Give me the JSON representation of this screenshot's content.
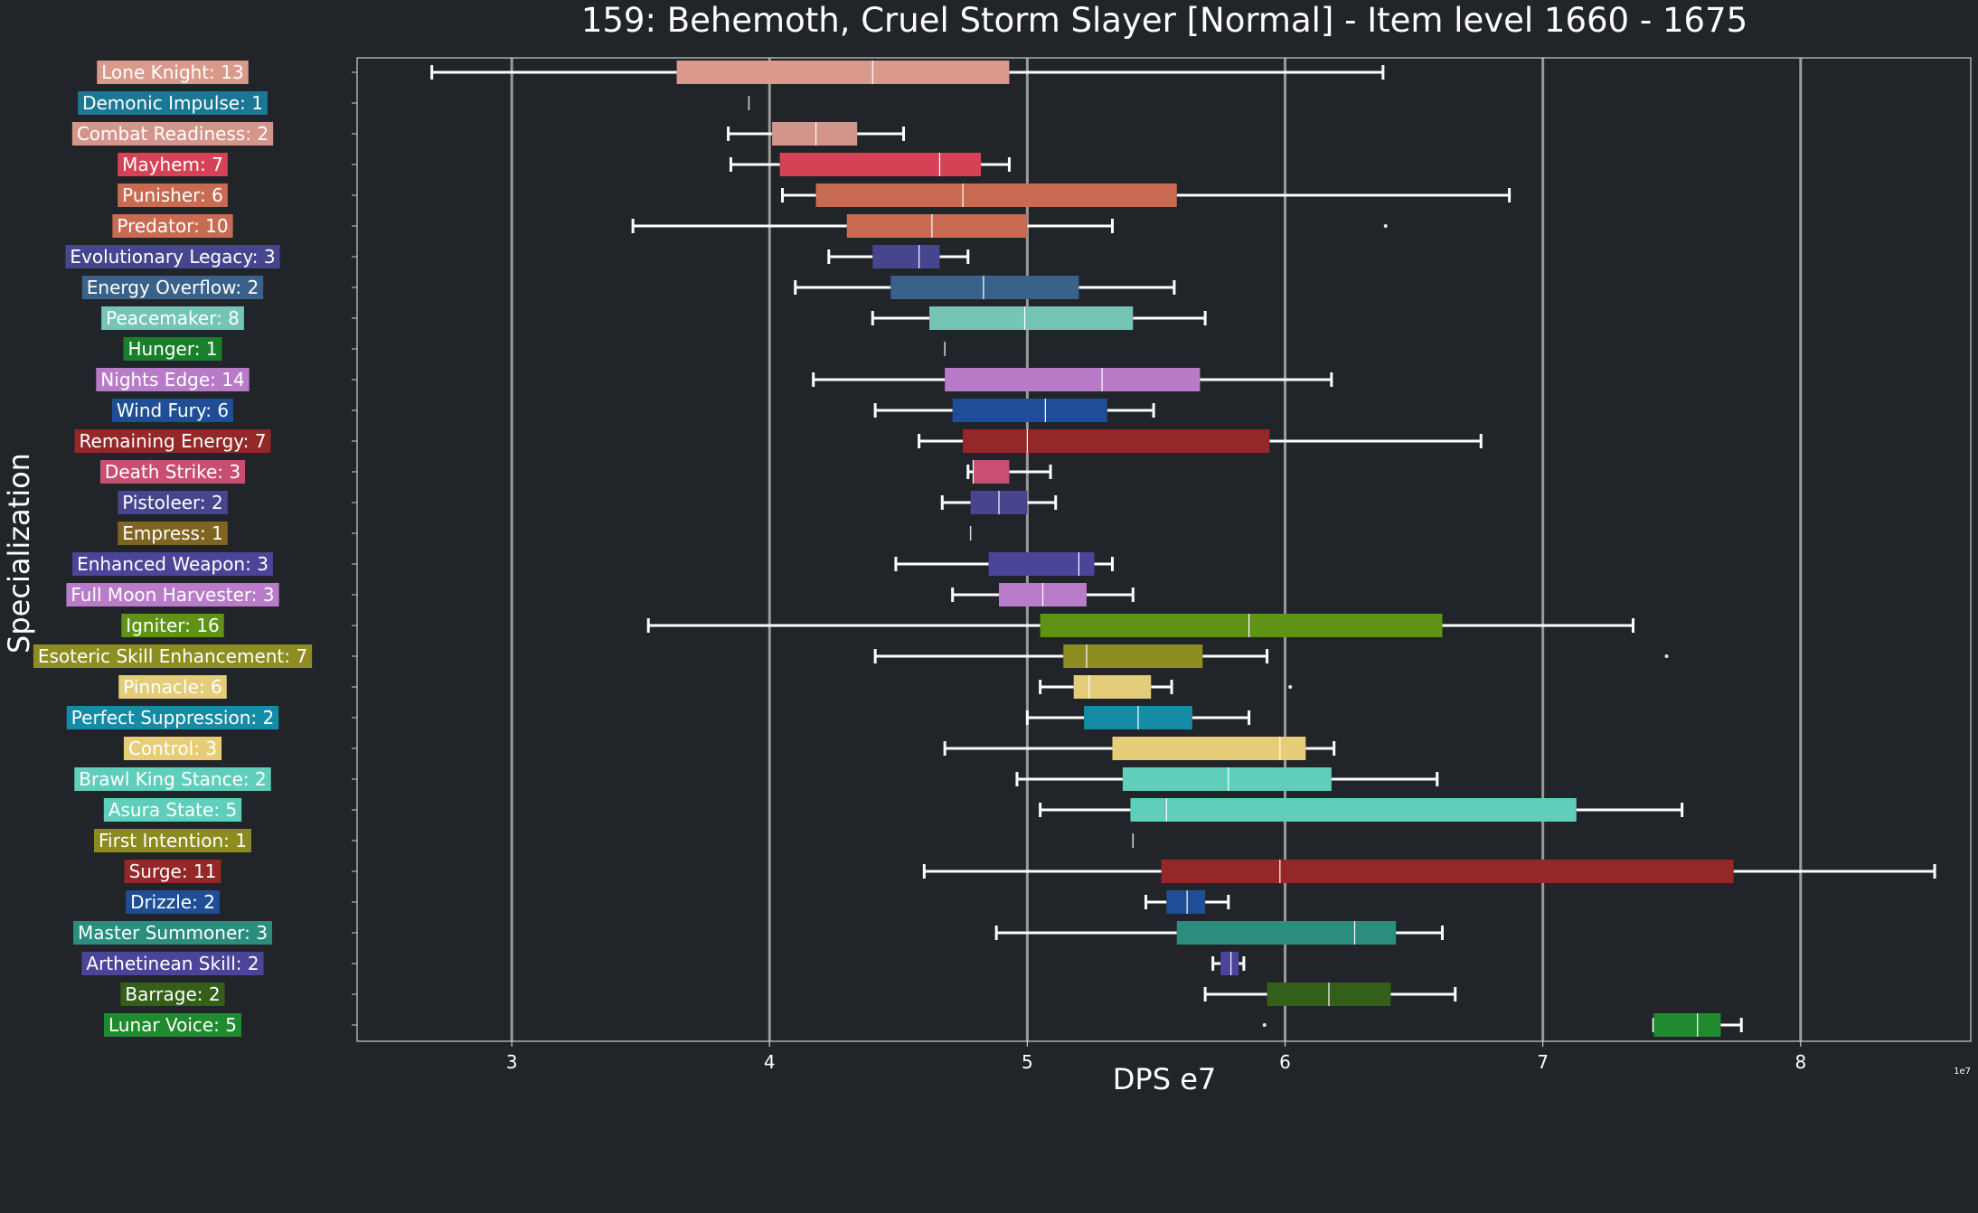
{
  "chart_data": {
    "type": "box",
    "title": "159: Behemoth, Cruel Storm Slayer [Normal] - Item level 1660 - 1675",
    "xlabel": "DPS e7",
    "ylabel": "Specialization",
    "x_exponent_label": "1e7",
    "xlim": [
      2.4,
      8.66
    ],
    "x_ticks": [
      3,
      4,
      5,
      6,
      7,
      8
    ],
    "grid": "vertical",
    "series": [
      {
        "label": "Lone Knight: 13",
        "color": "#d99a8b",
        "whisker_low": 2.69,
        "q1": 3.64,
        "median": 4.4,
        "q3": 4.93,
        "whisker_high": 6.38,
        "outliers": []
      },
      {
        "label": "Demonic Impulse: 1",
        "color": "#1a7895",
        "whisker_low": 3.92,
        "q1": 3.92,
        "median": 3.92,
        "q3": 3.92,
        "whisker_high": 3.92,
        "outliers": []
      },
      {
        "label": "Combat Readiness: 2",
        "color": "#d4968a",
        "whisker_low": 3.84,
        "q1": 4.01,
        "median": 4.18,
        "q3": 4.34,
        "whisker_high": 4.52,
        "outliers": []
      },
      {
        "label": "Mayhem: 7",
        "color": "#d64255",
        "whisker_low": 3.85,
        "q1": 4.04,
        "median": 4.66,
        "q3": 4.82,
        "whisker_high": 4.93,
        "outliers": []
      },
      {
        "label": "Punisher: 6",
        "color": "#c96b52",
        "whisker_low": 4.05,
        "q1": 4.18,
        "median": 4.75,
        "q3": 5.58,
        "whisker_high": 6.87,
        "outliers": []
      },
      {
        "label": "Predator: 10",
        "color": "#c96b52",
        "whisker_low": 3.47,
        "q1": 4.3,
        "median": 4.63,
        "q3": 5.0,
        "whisker_high": 5.33,
        "outliers": [
          6.39
        ]
      },
      {
        "label": "Evolutionary Legacy: 3",
        "color": "#46468e",
        "whisker_low": 4.23,
        "q1": 4.4,
        "median": 4.58,
        "q3": 4.66,
        "whisker_high": 4.77,
        "outliers": []
      },
      {
        "label": "Energy Overflow: 2",
        "color": "#3a6189",
        "whisker_low": 4.1,
        "q1": 4.47,
        "median": 4.83,
        "q3": 5.2,
        "whisker_high": 5.57,
        "outliers": []
      },
      {
        "label": "Peacemaker: 8",
        "color": "#76c4b5",
        "whisker_low": 4.4,
        "q1": 4.62,
        "median": 4.99,
        "q3": 5.41,
        "whisker_high": 5.69,
        "outliers": []
      },
      {
        "label": "Hunger: 1",
        "color": "#1a7f2a",
        "whisker_low": 4.68,
        "q1": 4.68,
        "median": 4.68,
        "q3": 4.68,
        "whisker_high": 4.68,
        "outliers": []
      },
      {
        "label": "Nights Edge: 14",
        "color": "#b87bc8",
        "whisker_low": 4.17,
        "q1": 4.68,
        "median": 5.29,
        "q3": 5.67,
        "whisker_high": 6.18,
        "outliers": []
      },
      {
        "label": "Wind Fury: 6",
        "color": "#1f4e96",
        "whisker_low": 4.41,
        "q1": 4.71,
        "median": 5.07,
        "q3": 5.31,
        "whisker_high": 5.49,
        "outliers": []
      },
      {
        "label": "Remaining Energy: 7",
        "color": "#942828",
        "whisker_low": 4.58,
        "q1": 4.75,
        "median": 5.0,
        "q3": 5.94,
        "whisker_high": 6.76,
        "outliers": []
      },
      {
        "label": "Death Strike: 3",
        "color": "#c94f72",
        "whisker_low": 4.77,
        "q1": 4.79,
        "median": 4.79,
        "q3": 4.93,
        "whisker_high": 5.09,
        "outliers": []
      },
      {
        "label": "Pistoleer: 2",
        "color": "#46458e",
        "whisker_low": 4.67,
        "q1": 4.78,
        "median": 4.89,
        "q3": 5.0,
        "whisker_high": 5.11,
        "outliers": []
      },
      {
        "label": "Empress: 1",
        "color": "#7f6521",
        "whisker_low": 4.78,
        "q1": 4.78,
        "median": 4.78,
        "q3": 4.78,
        "whisker_high": 4.78,
        "outliers": []
      },
      {
        "label": "Enhanced Weapon: 3",
        "color": "#4a4599",
        "whisker_low": 4.49,
        "q1": 4.85,
        "median": 5.2,
        "q3": 5.26,
        "whisker_high": 5.33,
        "outliers": []
      },
      {
        "label": "Full Moon Harvester: 3",
        "color": "#b97cc8",
        "whisker_low": 4.71,
        "q1": 4.89,
        "median": 5.06,
        "q3": 5.23,
        "whisker_high": 5.41,
        "outliers": []
      },
      {
        "label": "Igniter: 16",
        "color": "#5e9317",
        "whisker_low": 3.53,
        "q1": 5.05,
        "median": 5.86,
        "q3": 6.61,
        "whisker_high": 7.35,
        "outliers": []
      },
      {
        "label": "Esoteric Skill Enhancement: 7",
        "color": "#8d8d22",
        "whisker_low": 4.41,
        "q1": 5.14,
        "median": 5.23,
        "q3": 5.68,
        "whisker_high": 5.93,
        "outliers": [
          7.48
        ]
      },
      {
        "label": "Pinnacle: 6",
        "color": "#e3cc7a",
        "whisker_low": 5.05,
        "q1": 5.18,
        "median": 5.24,
        "q3": 5.48,
        "whisker_high": 5.56,
        "outliers": [
          6.02
        ]
      },
      {
        "label": "Perfect Suppression: 2",
        "color": "#168ba7",
        "whisker_low": 5.0,
        "q1": 5.22,
        "median": 5.43,
        "q3": 5.64,
        "whisker_high": 5.86,
        "outliers": []
      },
      {
        "label": "Control: 3",
        "color": "#e8cd78",
        "whisker_low": 4.68,
        "q1": 5.33,
        "median": 5.98,
        "q3": 6.08,
        "whisker_high": 6.19,
        "outliers": []
      },
      {
        "label": "Brawl King Stance: 2",
        "color": "#5fcfbb",
        "whisker_low": 4.96,
        "q1": 5.37,
        "median": 5.78,
        "q3": 6.18,
        "whisker_high": 6.59,
        "outliers": []
      },
      {
        "label": "Asura State: 5",
        "color": "#5fcfbb",
        "whisker_low": 5.05,
        "q1": 5.4,
        "median": 5.54,
        "q3": 7.13,
        "whisker_high": 7.54,
        "outliers": []
      },
      {
        "label": "First Intention: 1",
        "color": "#8b8b20",
        "whisker_low": 5.41,
        "q1": 5.41,
        "median": 5.41,
        "q3": 5.41,
        "whisker_high": 5.41,
        "outliers": []
      },
      {
        "label": "Surge: 11",
        "color": "#942828",
        "whisker_low": 4.6,
        "q1": 5.52,
        "median": 5.98,
        "q3": 7.74,
        "whisker_high": 8.52,
        "outliers": []
      },
      {
        "label": "Drizzle: 2",
        "color": "#1f4e96",
        "whisker_low": 5.46,
        "q1": 5.54,
        "median": 5.62,
        "q3": 5.69,
        "whisker_high": 5.78,
        "outliers": []
      },
      {
        "label": "Master Summoner: 3",
        "color": "#2a8d7e",
        "whisker_low": 4.88,
        "q1": 5.58,
        "median": 6.27,
        "q3": 6.43,
        "whisker_high": 6.61,
        "outliers": []
      },
      {
        "label": "Arthetinean Skill: 2",
        "color": "#4a4599",
        "whisker_low": 5.72,
        "q1": 5.75,
        "median": 5.79,
        "q3": 5.82,
        "whisker_high": 5.84,
        "outliers": []
      },
      {
        "label": "Barrage: 2",
        "color": "#345f1b",
        "whisker_low": 5.69,
        "q1": 5.93,
        "median": 6.17,
        "q3": 6.41,
        "whisker_high": 6.66,
        "outliers": []
      },
      {
        "label": "Lunar Voice: 5",
        "color": "#1f8a2e",
        "whisker_low": 7.43,
        "q1": 7.43,
        "median": 7.6,
        "q3": 7.69,
        "whisker_high": 7.77,
        "outliers": [
          5.92
        ]
      }
    ]
  }
}
